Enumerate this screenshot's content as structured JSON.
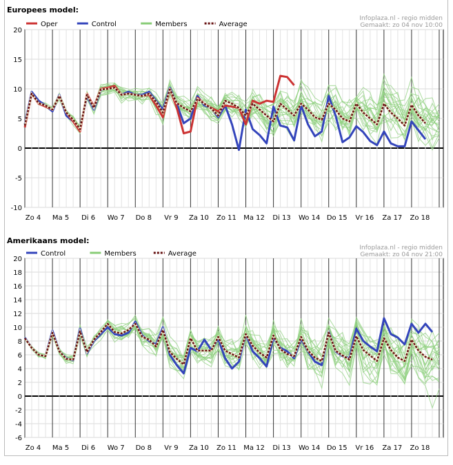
{
  "chart_data": [
    {
      "type": "line",
      "title": "Europees model:",
      "credit_line1": "Infoplaza.nl - regio midden",
      "credit_line2": "Gemaakt: zo 04 nov 10:00",
      "ylim": [
        -10,
        20
      ],
      "yticks": [
        -10,
        -5,
        0,
        5,
        10,
        15,
        20
      ],
      "day_labels": [
        "Zo 4",
        "Ma 5",
        "Di 6",
        "Wo 7",
        "Do 8",
        "Vr 9",
        "Za 10",
        "Zo 11",
        "Ma 12",
        "Di 13",
        "Wo 14",
        "Do 15",
        "Vr 16",
        "Za 17",
        "Zo 18"
      ],
      "steps_per_day": 4,
      "legend": [
        {
          "name": "Oper",
          "color": "#cc3333",
          "dash": ""
        },
        {
          "name": "Control",
          "color": "#3344bb",
          "dash": ""
        },
        {
          "name": "Members",
          "color": "#88cc77",
          "dash": ""
        },
        {
          "name": "Average",
          "color": "#661111",
          "dash": "3,2"
        }
      ],
      "series": [
        {
          "name": "Oper",
          "color": "#cc3333",
          "width": 3,
          "values": [
            3.5,
            9.2,
            7.5,
            7,
            6.5,
            8.8,
            6,
            4.5,
            2.8,
            9.2,
            7,
            10,
            10.2,
            10.5,
            9,
            9.2,
            9,
            8.8,
            9,
            7.2,
            5.2,
            10,
            6.8,
            2.5,
            2.8,
            8.5,
            7.5,
            6.8,
            6.2,
            7.2,
            7,
            6.8,
            4,
            8,
            7.5,
            8,
            7.8,
            12.2,
            12,
            10.6
          ]
        },
        {
          "name": "Control",
          "color": "#3344bb",
          "width": 3,
          "values": [
            4,
            9.5,
            8,
            7.2,
            6.2,
            9,
            5.5,
            4.5,
            3.2,
            8.8,
            6.5,
            9.8,
            10.2,
            10.2,
            9,
            9.5,
            9,
            9,
            9.5,
            8,
            6.5,
            10.2,
            7.5,
            4.2,
            5,
            8.8,
            7.2,
            6.8,
            5.2,
            7.2,
            4,
            -0.3,
            6.5,
            3.2,
            2.2,
            0.8,
            7,
            3.8,
            3.5,
            1.3,
            7.2,
            4,
            2,
            2.8,
            8.8,
            5.5,
            1,
            1.8,
            3.7,
            2.7,
            1.2,
            0.5,
            2.8,
            0.8,
            0.3,
            0.3,
            4.5,
            3,
            1.5
          ]
        },
        {
          "name": "Average",
          "color": "#661111",
          "width": 2.5,
          "dash": "3,2",
          "values": [
            3.8,
            9.2,
            7.6,
            7.2,
            6.5,
            8.8,
            6,
            4.8,
            3.2,
            9,
            6.8,
            9.9,
            10,
            10.2,
            9,
            9.2,
            9,
            8.8,
            9.2,
            7.8,
            6,
            9.9,
            7.6,
            6.8,
            6.2,
            8.3,
            7.5,
            6.7,
            5.5,
            8,
            7.5,
            6.8,
            5.5,
            7.5,
            6.5,
            5.5,
            4.5,
            7.5,
            6.5,
            5.5,
            7.5,
            6.5,
            5.2,
            4.8,
            7.5,
            6.5,
            5,
            4.5,
            7.5,
            6,
            5,
            4,
            7.5,
            6,
            5,
            3.8,
            7.3,
            5.5,
            4.2
          ]
        }
      ]
    },
    {
      "type": "line",
      "title": "Amerikaans model:",
      "credit_line1": "Infoplaza.nl - regio midden",
      "credit_line2": "Gemaakt: zo 04 nov 21:00",
      "ylim": [
        -6,
        20
      ],
      "yticks": [
        -6,
        -4,
        -2,
        0,
        2,
        4,
        6,
        8,
        10,
        12,
        14,
        16,
        18,
        20
      ],
      "day_labels": [
        "Zo 4",
        "Ma 5",
        "Di 6",
        "Wo 7",
        "Do 8",
        "Vr 9",
        "Za 10",
        "Zo 11",
        "Ma 12",
        "Di 13",
        "Wo 14",
        "Do 15",
        "Vr 16",
        "Za 17",
        "Zo 18"
      ],
      "steps_per_day": 4,
      "legend": [
        {
          "name": "Control",
          "color": "#3344bb",
          "dash": ""
        },
        {
          "name": "Members",
          "color": "#88cc77",
          "dash": ""
        },
        {
          "name": "Average",
          "color": "#661111",
          "dash": "3,2"
        }
      ],
      "series": [
        {
          "name": "Control",
          "color": "#3344bb",
          "width": 3,
          "values": [
            8.5,
            7,
            6,
            5.8,
            9.5,
            6.5,
            5.5,
            5.2,
            9.8,
            6.2,
            8,
            9,
            10,
            9,
            8.8,
            9.2,
            10.8,
            8.8,
            8,
            7.5,
            10,
            6,
            4.5,
            3.3,
            7,
            6.5,
            8.2,
            6.7,
            8.3,
            5.5,
            4,
            5,
            9,
            6.5,
            5.5,
            4.3,
            8.5,
            7,
            6.5,
            5.5,
            8.3,
            6.5,
            5,
            4.5,
            9.4,
            6.5,
            5.8,
            5.5,
            9.8,
            8,
            7.2,
            6.5,
            11.3,
            9,
            8.5,
            7.5,
            10.5,
            9.2,
            10.5,
            9.3
          ]
        },
        {
          "name": "Average",
          "color": "#661111",
          "width": 2.5,
          "dash": "3,2",
          "values": [
            8.4,
            7,
            6,
            5.8,
            9.2,
            6.5,
            5.4,
            5.3,
            9.4,
            6.4,
            8.2,
            9.3,
            10.5,
            9.3,
            9.1,
            9.6,
            10.5,
            8.6,
            8.2,
            7.2,
            9.6,
            6.4,
            5.4,
            4.6,
            8.4,
            6.6,
            6.6,
            6.6,
            8.6,
            6.6,
            6.1,
            5.6,
            9,
            7.3,
            6.3,
            5.6,
            8.8,
            6.8,
            6.1,
            5.8,
            8.6,
            6.6,
            5.6,
            5.1,
            9.2,
            6.6,
            5.9,
            5.3,
            8.7,
            6.7,
            5.9,
            5.1,
            8.4,
            6.7,
            5.6,
            5.1,
            8.2,
            6.6,
            5.7,
            5.3
          ]
        }
      ]
    }
  ]
}
